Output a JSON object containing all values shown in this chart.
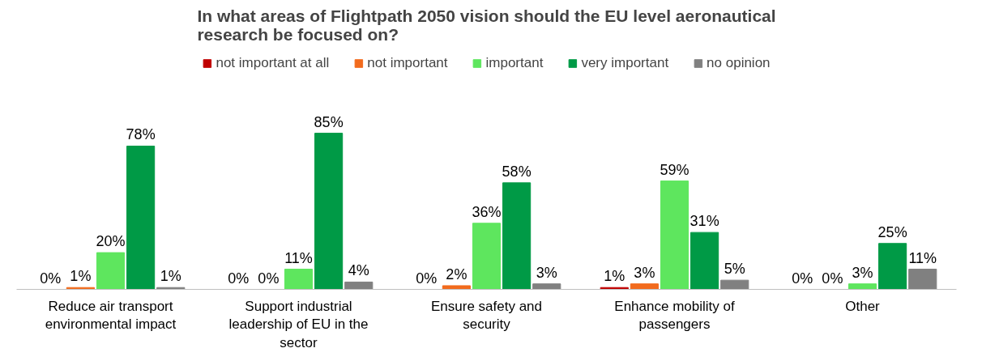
{
  "chart_data": {
    "type": "bar",
    "title": "In what areas of Flightpath 2050 vision should the EU level aeronautical research be focused on?",
    "categories": [
      "Reduce air transport environmental impact",
      "Support industrial leadership of EU in the sector",
      "Ensure safety and security",
      "Enhance mobility of passengers",
      "Other"
    ],
    "series": [
      {
        "name": "not important at all",
        "color": "#c00000",
        "values": [
          0,
          0,
          0,
          1,
          0
        ],
        "value_labels": [
          "0%",
          "0%",
          "0%",
          "1%",
          "0%"
        ]
      },
      {
        "name": "not important",
        "color": "#f26b1d",
        "values": [
          1,
          0,
          2,
          3,
          0
        ],
        "value_labels": [
          "1%",
          "0%",
          "2%",
          "3%",
          "0%"
        ]
      },
      {
        "name": "important",
        "color": "#5ee65e",
        "values": [
          20,
          11,
          36,
          59,
          3
        ],
        "value_labels": [
          "20%",
          "11%",
          "36%",
          "59%",
          "3%"
        ]
      },
      {
        "name": "very important",
        "color": "#009a46",
        "values": [
          78,
          85,
          58,
          31,
          25
        ],
        "value_labels": [
          "78%",
          "85%",
          "58%",
          "31%",
          "25%"
        ]
      },
      {
        "name": "no opinion",
        "color": "#808080",
        "values": [
          1,
          4,
          3,
          5,
          11
        ],
        "value_labels": [
          "1%",
          "4%",
          "3%",
          "5%",
          "11%"
        ]
      }
    ],
    "legend": "top"
  }
}
